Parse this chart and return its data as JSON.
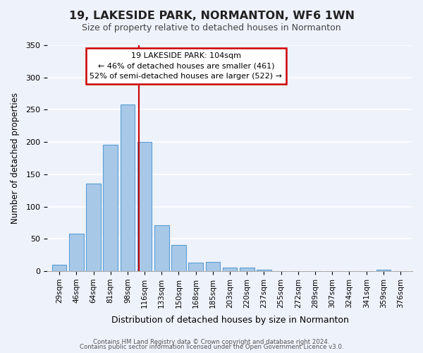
{
  "title": "19, LAKESIDE PARK, NORMANTON, WF6 1WN",
  "subtitle": "Size of property relative to detached houses in Normanton",
  "xlabel": "Distribution of detached houses by size in Normanton",
  "ylabel": "Number of detached properties",
  "bar_color": "#a8c8e8",
  "bar_edge_color": "#5a9fd4",
  "categories": [
    "29sqm",
    "46sqm",
    "64sqm",
    "81sqm",
    "98sqm",
    "116sqm",
    "133sqm",
    "150sqm",
    "168sqm",
    "185sqm",
    "203sqm",
    "220sqm",
    "237sqm",
    "255sqm",
    "272sqm",
    "289sqm",
    "307sqm",
    "324sqm",
    "341sqm",
    "359sqm",
    "376sqm"
  ],
  "values": [
    10,
    58,
    136,
    196,
    258,
    200,
    71,
    41,
    13,
    14,
    5,
    6,
    2,
    0,
    0,
    0,
    0,
    0,
    0,
    2,
    0
  ],
  "ylim": [
    0,
    350
  ],
  "yticks": [
    0,
    50,
    100,
    150,
    200,
    250,
    300,
    350
  ],
  "vline_x": 4.67,
  "vline_color": "#cc0000",
  "annotation_title": "19 LAKESIDE PARK: 104sqm",
  "annotation_line1": "← 46% of detached houses are smaller (461)",
  "annotation_line2": "52% of semi-detached houses are larger (522) →",
  "annotation_box_color": "#ffffff",
  "annotation_box_edge": "#cc0000",
  "footer1": "Contains HM Land Registry data © Crown copyright and database right 2024.",
  "footer2": "Contains public sector information licensed under the Open Government Licence v3.0.",
  "background_color": "#eef2fb",
  "plot_background": "#eef2fb",
  "grid_color": "#ffffff"
}
